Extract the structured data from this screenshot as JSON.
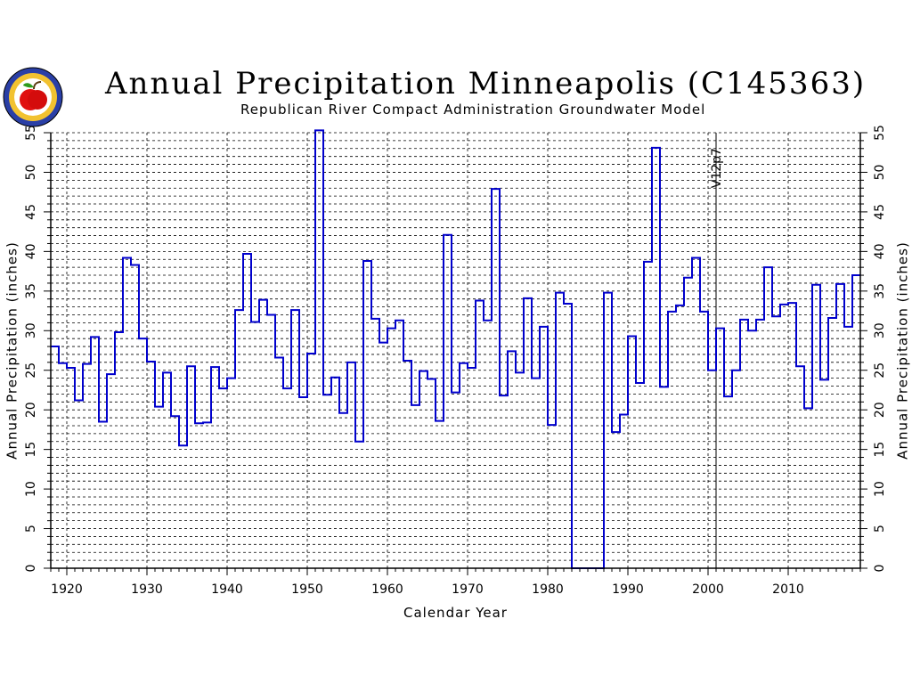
{
  "title": "Annual  Precipitation  Minneapolis  (C145363)",
  "subtitle": "Republican  River  Compact  Administration  Groundwater  Model",
  "colors": {
    "series": "#0000cc",
    "grid": "#000000",
    "axis": "#000000"
  },
  "logo": {
    "icon": "apple-seal-icon"
  },
  "chart_data": {
    "type": "line",
    "step": true,
    "xlabel": "Calendar  Year",
    "ylabel": "Annual  Precipitation  (inches)",
    "xlim": [
      1918,
      2019
    ],
    "ylim": [
      0,
      55
    ],
    "xticks": [
      1920,
      1930,
      1940,
      1950,
      1960,
      1970,
      1980,
      1990,
      2000,
      2010
    ],
    "yticks": [
      0,
      5,
      10,
      15,
      20,
      25,
      30,
      35,
      40,
      45,
      50,
      55
    ],
    "grid": true,
    "annotation": {
      "text": "V12p7",
      "x": 2001
    },
    "series": [
      {
        "x": [
          1918,
          1919,
          1920,
          1921,
          1922,
          1923,
          1924,
          1925,
          1926,
          1927,
          1928,
          1929,
          1930,
          1931,
          1932,
          1933,
          1934,
          1935,
          1936,
          1937,
          1938,
          1939,
          1940,
          1941,
          1942,
          1943,
          1944,
          1945,
          1946,
          1947,
          1948,
          1949,
          1950,
          1951,
          1952,
          1953,
          1954,
          1955,
          1956,
          1957,
          1958,
          1959,
          1960,
          1961,
          1962,
          1963,
          1964,
          1965,
          1966,
          1967,
          1968,
          1969,
          1970,
          1971,
          1972,
          1973,
          1974,
          1975,
          1976,
          1977,
          1978,
          1979,
          1980,
          1981,
          1982,
          1983,
          1984,
          1985,
          1986,
          1987,
          1988,
          1989,
          1990,
          1991,
          1992,
          1993,
          1994,
          1995,
          1996,
          1997,
          1998,
          1999,
          2000,
          2001,
          2002,
          2003,
          2004,
          2005,
          2006,
          2007,
          2008,
          2009,
          2010,
          2011,
          2012,
          2013,
          2014,
          2015,
          2016,
          2017,
          2018
        ],
        "values": [
          28.0,
          25.9,
          25.3,
          21.2,
          25.8,
          29.2,
          18.5,
          24.5,
          29.8,
          39.2,
          38.3,
          29.0,
          26.1,
          20.4,
          24.7,
          19.2,
          15.5,
          25.5,
          18.3,
          18.4,
          25.4,
          22.7,
          24.0,
          32.6,
          39.7,
          31.1,
          33.9,
          32.0,
          26.6,
          22.7,
          32.6,
          21.6,
          27.1,
          55.3,
          21.9,
          24.1,
          19.6,
          26.0,
          16.0,
          38.8,
          31.5,
          28.5,
          30.3,
          31.3,
          26.2,
          20.6,
          24.9,
          23.9,
          18.6,
          42.1,
          22.2,
          25.9,
          25.3,
          33.8,
          31.3,
          47.9,
          21.8,
          27.4,
          24.7,
          34.1,
          24.0,
          30.5,
          18.1,
          34.8,
          33.4,
          0,
          0,
          0,
          0,
          34.8,
          17.2,
          19.4,
          29.3,
          23.4,
          38.7,
          53.1,
          22.9,
          32.4,
          33.2,
          36.7,
          39.2,
          32.4,
          25.0,
          30.3,
          21.7,
          25.0,
          31.4,
          30.0,
          31.4,
          38.0,
          31.8,
          33.3,
          33.5,
          25.5,
          20.2,
          35.8,
          23.8,
          31.6,
          35.9,
          30.5,
          37.0
        ]
      }
    ]
  }
}
